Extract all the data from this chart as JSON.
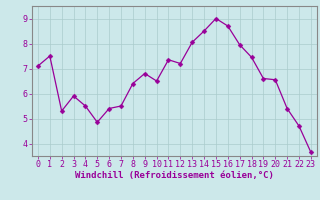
{
  "x": [
    0,
    1,
    2,
    3,
    4,
    5,
    6,
    7,
    8,
    9,
    10,
    11,
    12,
    13,
    14,
    15,
    16,
    17,
    18,
    19,
    20,
    21,
    22,
    23
  ],
  "y": [
    7.1,
    7.5,
    5.3,
    5.9,
    5.5,
    4.85,
    5.4,
    5.5,
    6.4,
    6.8,
    6.5,
    7.35,
    7.2,
    8.05,
    8.5,
    9.0,
    8.7,
    7.95,
    7.45,
    6.6,
    6.55,
    5.4,
    4.7,
    3.65
  ],
  "line_color": "#990099",
  "marker_color": "#990099",
  "bg_color": "#cce8ea",
  "grid_color": "#aacccc",
  "axis_color": "#990099",
  "border_color": "#888888",
  "xlabel": "Windchill (Refroidissement éolien,°C)",
  "ylim": [
    3.5,
    9.5
  ],
  "xlim": [
    -0.5,
    23.5
  ],
  "yticks": [
    4,
    5,
    6,
    7,
    8,
    9
  ],
  "xticks": [
    0,
    1,
    2,
    3,
    4,
    5,
    6,
    7,
    8,
    9,
    10,
    11,
    12,
    13,
    14,
    15,
    16,
    17,
    18,
    19,
    20,
    21,
    22,
    23
  ],
  "xlabel_fontsize": 6.5,
  "tick_fontsize": 6,
  "marker_size": 2.5,
  "linewidth": 0.9
}
